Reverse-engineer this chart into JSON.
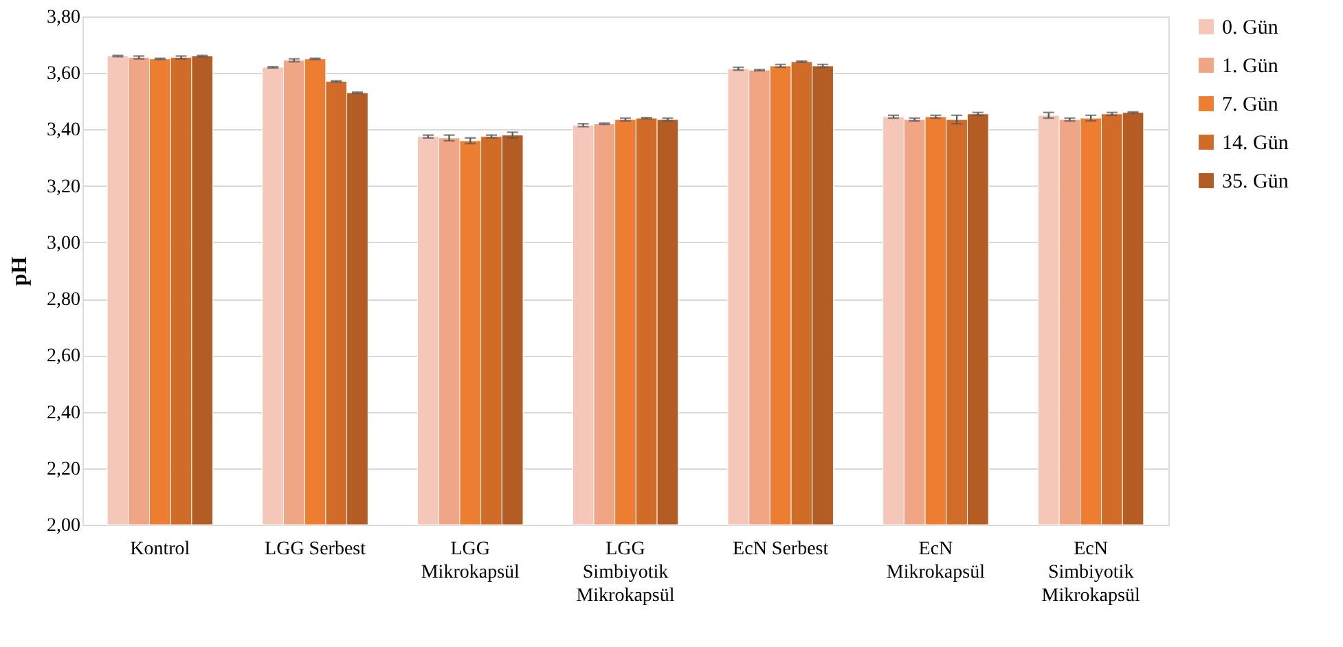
{
  "chart_data": {
    "type": "bar",
    "ylabel": "pH",
    "categories": [
      "Kontrol",
      "LGG Serbest",
      "LGG Mikrokapsül",
      "LGG Simbiyotik Mikrokapsül",
      "EcN Serbest",
      "EcN Mikrokapsül",
      "EcN Simbiyotik Mikrokapsül"
    ],
    "series": [
      {
        "name": "0. Gün",
        "color": "#f4c7b8",
        "values": [
          3.66,
          3.62,
          3.375,
          3.415,
          3.615,
          3.445,
          3.45
        ],
        "errors": [
          0.002,
          0.002,
          0.005,
          0.005,
          0.005,
          0.005,
          0.01
        ]
      },
      {
        "name": "1. Gün",
        "color": "#f0a585",
        "values": [
          3.655,
          3.645,
          3.37,
          3.42,
          3.61,
          3.435,
          3.435
        ],
        "errors": [
          0.005,
          0.005,
          0.01,
          0.002,
          0.002,
          0.005,
          0.005
        ]
      },
      {
        "name": "7. Gün",
        "color": "#ed7d31",
        "values": [
          3.65,
          3.65,
          3.36,
          3.435,
          3.625,
          3.445,
          3.44
        ],
        "errors": [
          0.002,
          0.002,
          0.01,
          0.005,
          0.005,
          0.005,
          0.01
        ]
      },
      {
        "name": "14. Gün",
        "color": "#d06b28",
        "values": [
          3.655,
          3.57,
          3.375,
          3.44,
          3.64,
          3.435,
          3.455
        ],
        "errors": [
          0.005,
          0.002,
          0.005,
          0.002,
          0.002,
          0.015,
          0.005
        ]
      },
      {
        "name": "35. Gün",
        "color": "#b35c23",
        "values": [
          3.66,
          3.53,
          3.38,
          3.435,
          3.625,
          3.455,
          3.46
        ],
        "errors": [
          0.002,
          0.002,
          0.01,
          0.005,
          0.005,
          0.005,
          0.002
        ]
      }
    ],
    "ylim": [
      2.0,
      3.8
    ],
    "yticks": [
      {
        "value": 2.0,
        "label": "2,00"
      },
      {
        "value": 2.2,
        "label": "2,20"
      },
      {
        "value": 2.4,
        "label": "2,40"
      },
      {
        "value": 2.6,
        "label": "2,60"
      },
      {
        "value": 2.8,
        "label": "2,80"
      },
      {
        "value": 3.0,
        "label": "3,00"
      },
      {
        "value": 3.2,
        "label": "3,20"
      },
      {
        "value": 3.4,
        "label": "3,40"
      },
      {
        "value": 3.6,
        "label": "3,60"
      },
      {
        "value": 3.8,
        "label": "3,80"
      }
    ],
    "grid": "y",
    "legend": "right"
  }
}
